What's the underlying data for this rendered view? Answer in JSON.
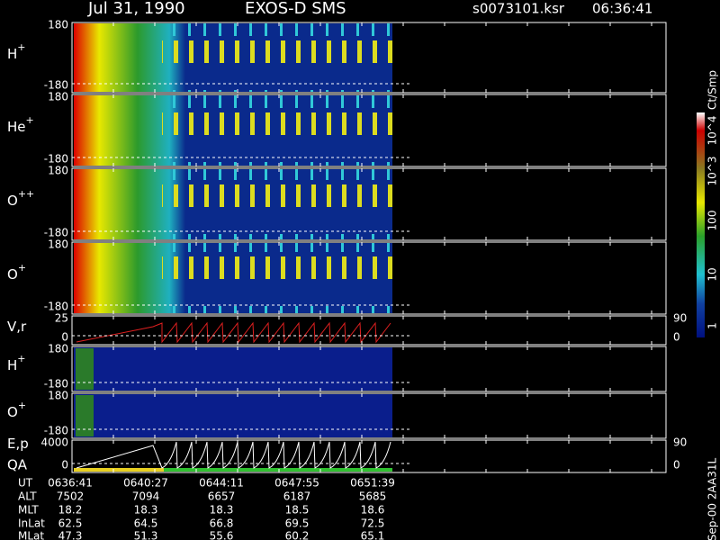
{
  "header": {
    "date": "Jul 31, 1990",
    "instrument": "EXOS-D SMS",
    "file": "s0073101.ksr",
    "time": "06:36:41"
  },
  "panels": [
    {
      "label": "H",
      "charge": "+",
      "top": "180",
      "bottom": "-180"
    },
    {
      "label": "He",
      "charge": "+",
      "top": "180",
      "bottom": "-180"
    },
    {
      "label": "O",
      "charge": "++",
      "top": "180",
      "bottom": "-180"
    },
    {
      "label": "O",
      "charge": "+",
      "top": "180",
      "bottom": "-180"
    },
    {
      "label": "V,r",
      "top": "25",
      "bottom": "0",
      "right_top": "90",
      "right_bottom": "0"
    },
    {
      "label": "H",
      "charge": "+",
      "top": "180",
      "bottom": "-180"
    },
    {
      "label": "O",
      "charge": "+",
      "top": "180",
      "bottom": "-180"
    },
    {
      "label": "E,p",
      "label2": "QA",
      "top": "4000",
      "bottom": "0",
      "right_top": "90",
      "right_bottom": "0"
    }
  ],
  "colorbar": {
    "unit": "Ct/Smp",
    "labels": [
      "10^4",
      "10^3",
      "100",
      "10",
      "1"
    ]
  },
  "footer": {
    "rows": [
      {
        "label": "UT",
        "values": [
          "0636:41",
          "0640:27",
          "0644:11",
          "0647:55",
          "0651:39"
        ]
      },
      {
        "label": "ALT",
        "values": [
          "7502",
          "7094",
          "6657",
          "6187",
          "5685"
        ]
      },
      {
        "label": "MLT",
        "values": [
          "18.2",
          "18.3",
          "18.3",
          "18.5",
          "18.6"
        ]
      },
      {
        "label": "InLat",
        "values": [
          "62.5",
          "64.5",
          "66.8",
          "69.5",
          "72.5"
        ]
      },
      {
        "label": "MLat",
        "values": [
          "47.3",
          "51.3",
          "55.6",
          "60.2",
          "65.1"
        ]
      }
    ]
  },
  "side_note": "Sep-00 2AA31L"
}
